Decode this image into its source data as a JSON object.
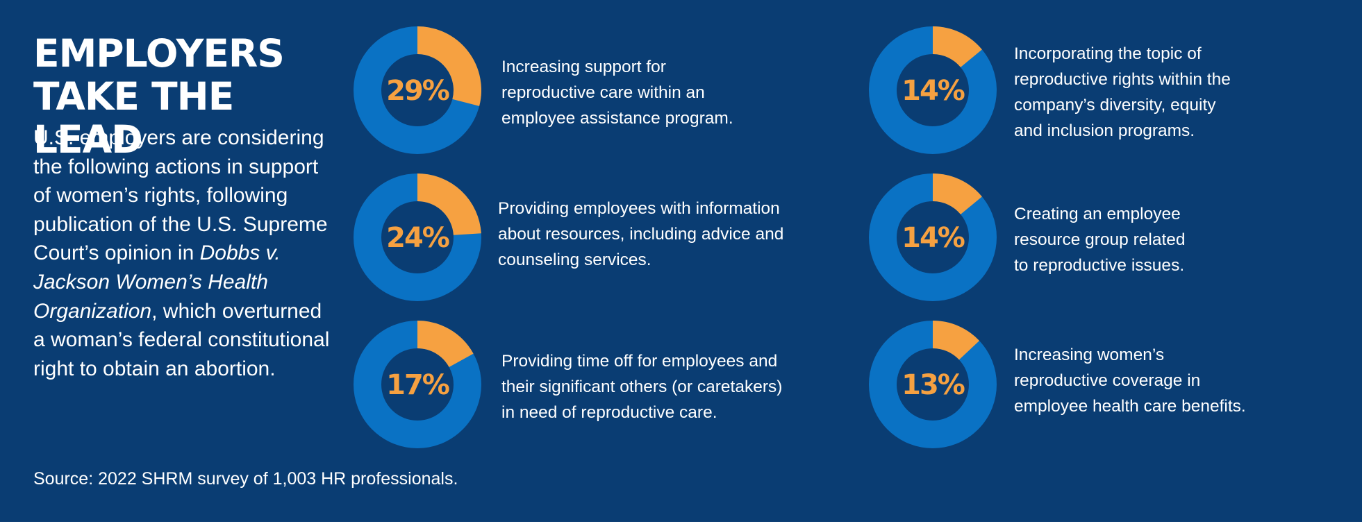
{
  "title_lines": [
    "EMPLOYERS",
    "TAKE THE LEAD"
  ],
  "intro": {
    "before": "U.S. employers are considering the following actions in support of women’s rights, following publication of the U.S. Supreme Court’s opinion in ",
    "case_name": "Dobbs v. Jackson Women’s Health Organization",
    "after": ", which overturned a woman’s federal constitutional right to obtain an abortion."
  },
  "source": "Source: 2022 SHRM survey of 1,003 HR professionals.",
  "colors": {
    "background": "#0a3d73",
    "ring": "#0a72c4",
    "highlight": "#f6a141",
    "text": "#ffffff"
  },
  "chart_data": {
    "type": "pie",
    "style": "donut",
    "series": [
      {
        "label": "29%",
        "value": 29,
        "description_lines": [
          "Increasing support for",
          "reproductive care within an",
          "employee assistance program."
        ]
      },
      {
        "label": "24%",
        "value": 24,
        "description_lines": [
          "Providing employees with information",
          "about resources, including advice and",
          "counseling services."
        ]
      },
      {
        "label": "17%",
        "value": 17,
        "description_lines": [
          "Providing time off for employees and",
          "their significant others (or caretakers)",
          "in need of reproductive care."
        ]
      },
      {
        "label": "14%",
        "value": 14,
        "description_lines": [
          "Incorporating the topic of",
          "reproductive rights within the",
          "company’s diversity, equity",
          "and inclusion programs."
        ]
      },
      {
        "label": "14%",
        "value": 14,
        "description_lines": [
          "Creating an employee",
          "resource group related",
          "to reproductive issues."
        ]
      },
      {
        "label": "13%",
        "value": 13,
        "description_lines": [
          "Increasing women’s",
          "reproductive coverage in",
          "employee health care benefits."
        ]
      }
    ]
  }
}
